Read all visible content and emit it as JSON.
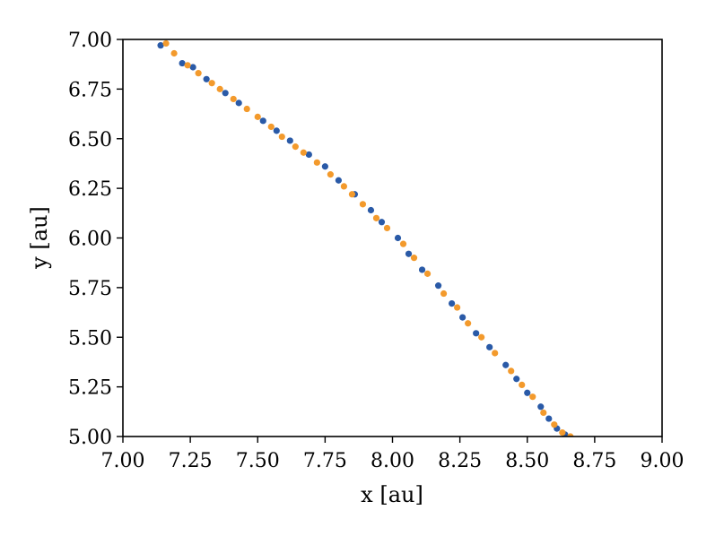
{
  "chart_data": {
    "type": "scatter",
    "title": "",
    "xlabel": "x [au]",
    "ylabel": "y [au]",
    "xlim": [
      7.0,
      9.0
    ],
    "ylim": [
      5.0,
      7.0
    ],
    "xticks": [
      "7.00",
      "7.25",
      "7.50",
      "7.75",
      "8.00",
      "8.25",
      "8.50",
      "8.75",
      "9.00"
    ],
    "yticks": [
      "5.00",
      "5.25",
      "5.50",
      "5.75",
      "6.00",
      "6.25",
      "6.50",
      "6.75",
      "7.00"
    ],
    "grid": false,
    "legend": "none",
    "colors": [
      "#2a5aa7",
      "#f39a2c"
    ],
    "series": [
      {
        "points": [
          [
            7.14,
            6.97
          ],
          [
            7.22,
            6.88
          ],
          [
            7.26,
            6.86
          ],
          [
            7.31,
            6.8
          ],
          [
            7.38,
            6.73
          ],
          [
            7.43,
            6.68
          ],
          [
            7.52,
            6.59
          ],
          [
            7.57,
            6.54
          ],
          [
            7.62,
            6.49
          ],
          [
            7.69,
            6.42
          ],
          [
            7.75,
            6.36
          ],
          [
            7.8,
            6.29
          ],
          [
            7.86,
            6.22
          ],
          [
            7.92,
            6.14
          ],
          [
            7.96,
            6.08
          ],
          [
            8.02,
            6.0
          ],
          [
            8.06,
            5.92
          ],
          [
            8.11,
            5.84
          ],
          [
            8.17,
            5.76
          ],
          [
            8.22,
            5.67
          ],
          [
            8.26,
            5.6
          ],
          [
            8.31,
            5.52
          ],
          [
            8.36,
            5.45
          ],
          [
            8.42,
            5.36
          ],
          [
            8.46,
            5.29
          ],
          [
            8.5,
            5.22
          ],
          [
            8.55,
            5.15
          ],
          [
            8.58,
            5.09
          ],
          [
            8.61,
            5.04
          ],
          [
            8.64,
            5.01
          ]
        ]
      },
      {
        "points": [
          [
            7.16,
            6.98
          ],
          [
            7.19,
            6.93
          ],
          [
            7.24,
            6.87
          ],
          [
            7.28,
            6.83
          ],
          [
            7.33,
            6.78
          ],
          [
            7.36,
            6.75
          ],
          [
            7.41,
            6.7
          ],
          [
            7.46,
            6.65
          ],
          [
            7.5,
            6.61
          ],
          [
            7.55,
            6.56
          ],
          [
            7.59,
            6.51
          ],
          [
            7.64,
            6.46
          ],
          [
            7.67,
            6.43
          ],
          [
            7.72,
            6.38
          ],
          [
            7.77,
            6.32
          ],
          [
            7.82,
            6.26
          ],
          [
            7.85,
            6.22
          ],
          [
            7.89,
            6.17
          ],
          [
            7.94,
            6.1
          ],
          [
            7.98,
            6.05
          ],
          [
            8.04,
            5.97
          ],
          [
            8.08,
            5.9
          ],
          [
            8.13,
            5.82
          ],
          [
            8.19,
            5.72
          ],
          [
            8.24,
            5.65
          ],
          [
            8.28,
            5.57
          ],
          [
            8.33,
            5.5
          ],
          [
            8.38,
            5.42
          ],
          [
            8.44,
            5.33
          ],
          [
            8.48,
            5.26
          ],
          [
            8.52,
            5.2
          ],
          [
            8.56,
            5.12
          ],
          [
            8.6,
            5.06
          ],
          [
            8.63,
            5.02
          ],
          [
            8.66,
            5.0
          ]
        ]
      }
    ]
  }
}
